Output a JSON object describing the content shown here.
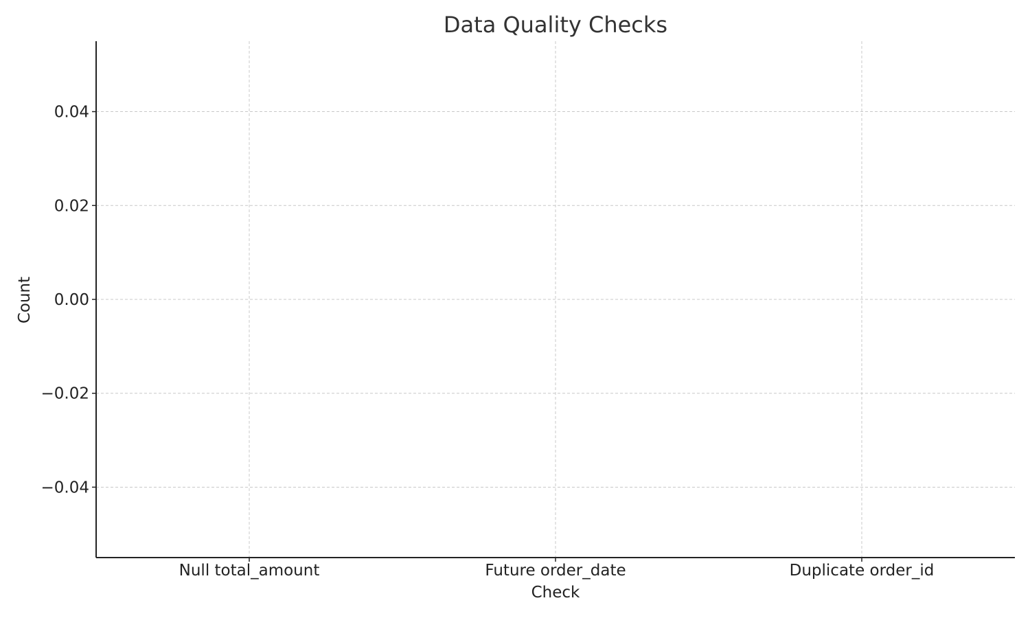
{
  "chart_data": {
    "type": "bar",
    "title": "Data Quality Checks",
    "xlabel": "Check",
    "ylabel": "Count",
    "categories": [
      "Null total_amount",
      "Future order_date",
      "Duplicate order_id"
    ],
    "values": [
      0,
      0,
      0
    ],
    "ylim": [
      -0.055,
      0.055
    ],
    "yticks": [
      0.04,
      0.02,
      0.0,
      -0.02,
      -0.04
    ],
    "ytick_labels": [
      "0.04",
      "0.02",
      "0.00",
      "−0.02",
      "−0.04"
    ],
    "grid": true,
    "colors": {
      "bar": "#4c72b0",
      "grid": "#c8c8c8",
      "axis": "#222222",
      "title": "#333333"
    }
  }
}
